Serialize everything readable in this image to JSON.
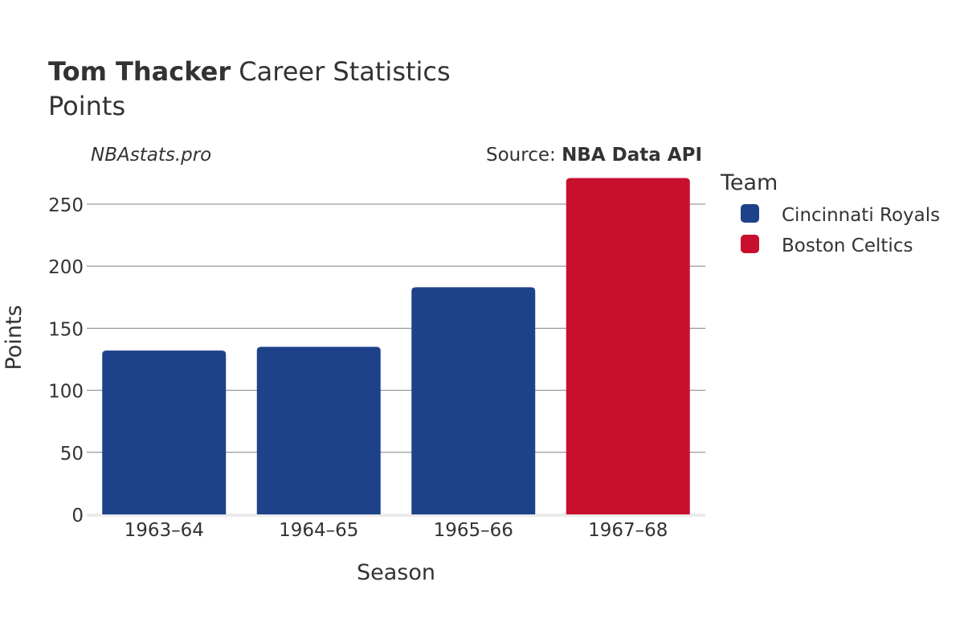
{
  "header": {
    "player_name": "Tom Thacker",
    "title_rest": " Career Statistics",
    "subtitle": "Points"
  },
  "watermark": "NBAstats.pro",
  "source": {
    "prefix": "Source: ",
    "name": "NBA Data API"
  },
  "legend": {
    "title": "Team",
    "items": [
      {
        "label": "Cincinnati Royals",
        "color": "#1d428a"
      },
      {
        "label": "Boston Celtics",
        "color": "#c8102e"
      }
    ]
  },
  "chart_data": {
    "type": "bar",
    "xlabel": "Season",
    "ylabel": "Points",
    "categories": [
      "1963–64",
      "1964–65",
      "1965–66",
      "1967–68"
    ],
    "values": [
      132,
      135,
      183,
      271
    ],
    "teams": [
      "Cincinnati Royals",
      "Cincinnati Royals",
      "Cincinnati Royals",
      "Boston Celtics"
    ],
    "ylim": [
      0,
      272
    ],
    "yticks": [
      0,
      50,
      100,
      150,
      200,
      250
    ],
    "grid": true,
    "legend_position": "right"
  }
}
